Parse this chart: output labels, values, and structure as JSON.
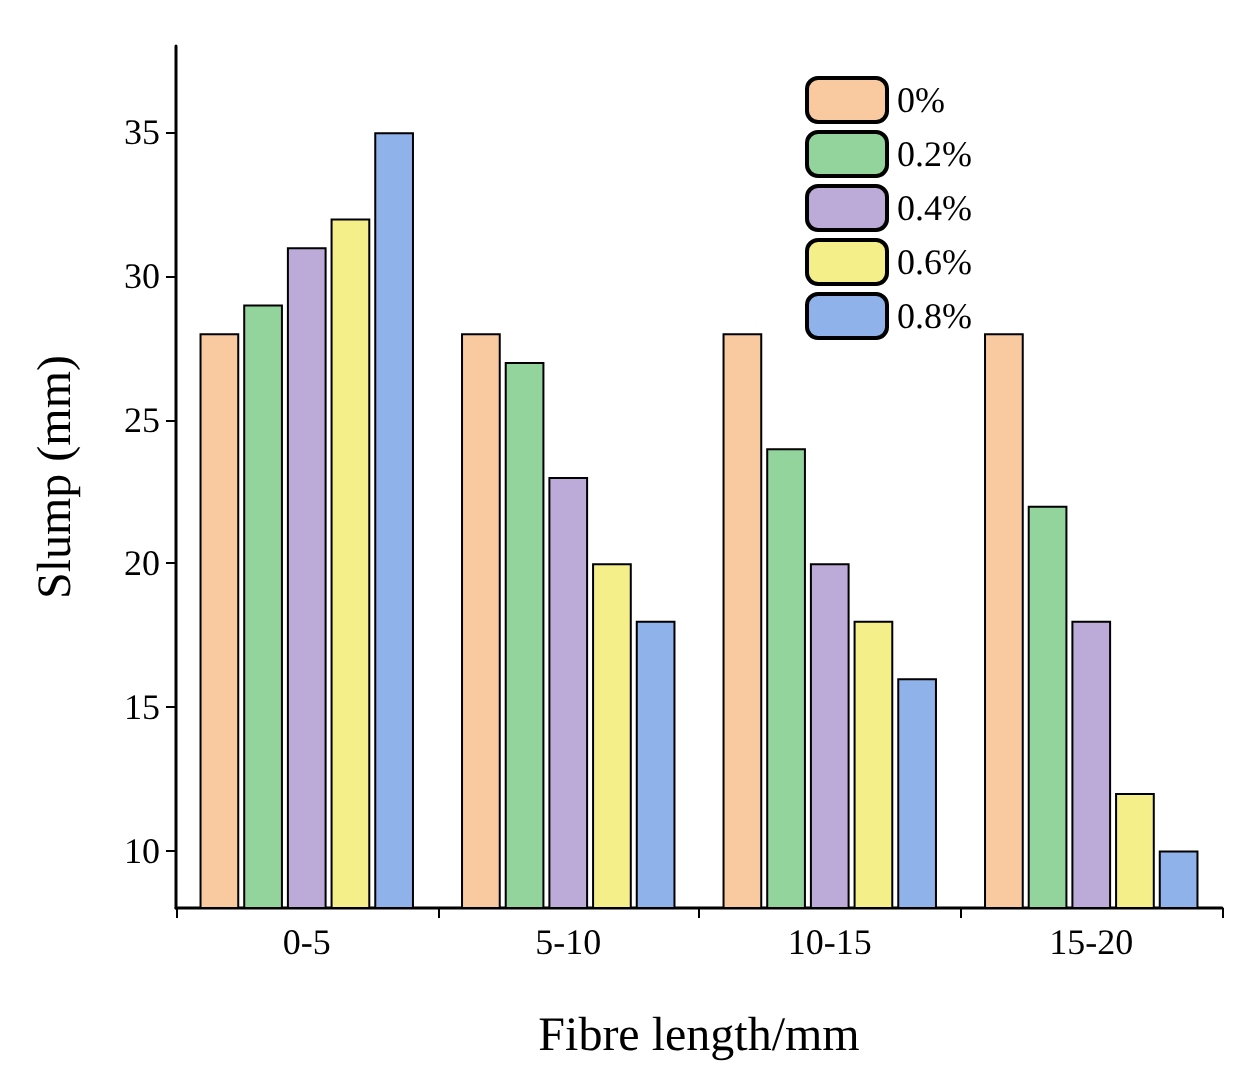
{
  "chart_data": {
    "type": "bar",
    "xlabel": "Fibre length/mm",
    "ylabel": "Slump (mm)",
    "categories": [
      "0-5",
      "5-10",
      "10-15",
      "15-20"
    ],
    "series": [
      {
        "name": "0%",
        "color": "#f9c9a0",
        "values": [
          28,
          28,
          28,
          28
        ]
      },
      {
        "name": "0.2%",
        "color": "#92d49c",
        "values": [
          29,
          27,
          24,
          22
        ]
      },
      {
        "name": "0.4%",
        "color": "#bcaad8",
        "values": [
          31,
          23,
          20,
          18
        ]
      },
      {
        "name": "0.6%",
        "color": "#f4ef88",
        "values": [
          32,
          20,
          18,
          12
        ]
      },
      {
        "name": "0.8%",
        "color": "#8fb2ea",
        "values": [
          35,
          18,
          16,
          10
        ]
      }
    ],
    "ylim": [
      8,
      38
    ],
    "yticks": [
      10,
      15,
      20,
      25,
      30,
      35
    ],
    "grid": false,
    "legend": "top right"
  }
}
